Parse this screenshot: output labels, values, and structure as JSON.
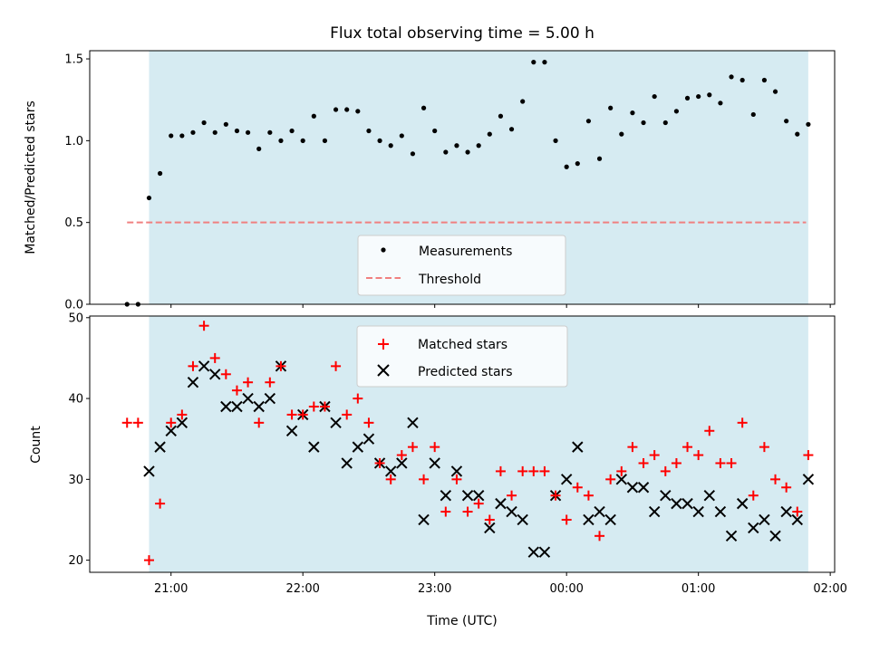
{
  "title": "Flux total observing time = 5.00 h",
  "colors": {
    "background": "#ffffff",
    "span": "#add8e6",
    "measurement": "#000000",
    "threshold": "#f08080",
    "matched": "#ff0000",
    "predicted": "#000000"
  },
  "chart_data": [
    {
      "type": "scatter",
      "ylabel": "Matched/Predicted stars",
      "xlabel": "",
      "ylim": [
        0,
        1.55
      ],
      "y_ticks": [
        {
          "label": "0.0",
          "value": 0.0
        },
        {
          "label": "0.5",
          "value": 0.5
        },
        {
          "label": "1.0",
          "value": 1.0
        },
        {
          "label": "1.5",
          "value": 1.5
        }
      ],
      "shaded_span_minutes": [
        1250,
        1550
      ],
      "threshold_line": {
        "value": 0.5,
        "x_start_minutes": 1240,
        "x_end_minutes": 1549
      },
      "legend": {
        "position": "lower center",
        "entries": [
          "Measurements",
          "Threshold"
        ]
      },
      "series": [
        {
          "name": "Measurements",
          "marker": "dot",
          "x_minutes": [
            1240,
            1245,
            1250,
            1255,
            1260,
            1265,
            1270,
            1275,
            1280,
            1285,
            1290,
            1295,
            1300,
            1305,
            1310,
            1315,
            1320,
            1325,
            1330,
            1335,
            1340,
            1345,
            1350,
            1355,
            1360,
            1365,
            1370,
            1375,
            1380,
            1385,
            1390,
            1395,
            1400,
            1405,
            1410,
            1415,
            1420,
            1425,
            1430,
            1435,
            1440,
            1445,
            1450,
            1455,
            1460,
            1465,
            1470,
            1475,
            1480,
            1485,
            1490,
            1495,
            1500,
            1505,
            1510,
            1515,
            1520,
            1525,
            1530,
            1535,
            1540,
            1545,
            1550
          ],
          "values": [
            0.0,
            0.0,
            0.65,
            0.8,
            1.03,
            1.03,
            1.05,
            1.11,
            1.05,
            1.1,
            1.06,
            1.05,
            0.95,
            1.05,
            1.0,
            1.06,
            1.0,
            1.15,
            1.0,
            1.19,
            1.19,
            1.18,
            1.06,
            1.0,
            0.97,
            1.03,
            0.92,
            1.2,
            1.06,
            0.93,
            0.97,
            0.93,
            0.97,
            1.04,
            1.15,
            1.07,
            1.24,
            1.48,
            1.48,
            1.0,
            0.84,
            0.86,
            1.12,
            0.89,
            1.2,
            1.04,
            1.17,
            1.11,
            1.27,
            1.11,
            1.18,
            1.26,
            1.27,
            1.28,
            1.23,
            1.39,
            1.37,
            1.16,
            1.37,
            1.3,
            1.12,
            1.04,
            1.1
          ]
        }
      ]
    },
    {
      "type": "scatter",
      "ylabel": "Count",
      "xlabel": "Time (UTC)",
      "ylim": [
        18.5,
        50.2
      ],
      "y_ticks": [
        {
          "label": "20",
          "value": 20
        },
        {
          "label": "30",
          "value": 30
        },
        {
          "label": "40",
          "value": 40
        },
        {
          "label": "50",
          "value": 50
        }
      ],
      "x_ticks": [
        {
          "label": "21:00",
          "minutes": 1260
        },
        {
          "label": "22:00",
          "minutes": 1320
        },
        {
          "label": "23:00",
          "minutes": 1380
        },
        {
          "label": "00:00",
          "minutes": 1440
        },
        {
          "label": "01:00",
          "minutes": 1500
        },
        {
          "label": "02:00",
          "minutes": 1560
        }
      ],
      "xlim_minutes": [
        1223,
        1562
      ],
      "shaded_span_minutes": [
        1250,
        1550
      ],
      "legend": {
        "position": "upper center",
        "entries": [
          "Matched stars",
          "Predicted stars"
        ]
      },
      "x_minutes": [
        1240,
        1245,
        1250,
        1255,
        1260,
        1265,
        1270,
        1275,
        1280,
        1285,
        1290,
        1295,
        1300,
        1305,
        1310,
        1315,
        1320,
        1325,
        1330,
        1335,
        1340,
        1345,
        1350,
        1355,
        1360,
        1365,
        1370,
        1375,
        1380,
        1385,
        1390,
        1395,
        1400,
        1405,
        1410,
        1415,
        1420,
        1425,
        1430,
        1435,
        1440,
        1445,
        1450,
        1455,
        1460,
        1465,
        1470,
        1475,
        1480,
        1485,
        1490,
        1495,
        1500,
        1505,
        1510,
        1515,
        1520,
        1525,
        1530,
        1535,
        1540,
        1545,
        1550
      ],
      "series": [
        {
          "name": "Matched stars",
          "marker": "plus",
          "values": [
            37,
            37,
            20,
            27,
            37,
            38,
            44,
            49,
            45,
            43,
            41,
            42,
            37,
            42,
            44,
            38,
            38,
            39,
            39,
            44,
            38,
            40,
            37,
            32,
            30,
            33,
            34,
            30,
            34,
            26,
            30,
            26,
            27,
            25,
            31,
            28,
            31,
            31,
            31,
            28,
            25,
            29,
            28,
            23,
            30,
            31,
            34,
            32,
            33,
            31,
            32,
            34,
            33,
            36,
            32,
            32,
            37,
            28,
            34,
            30,
            29,
            26,
            33
          ]
        },
        {
          "name": "Predicted stars",
          "marker": "x",
          "values": [
            null,
            null,
            31,
            34,
            36,
            37,
            42,
            44,
            43,
            39,
            39,
            40,
            39,
            40,
            44,
            36,
            38,
            34,
            39,
            37,
            32,
            34,
            35,
            32,
            31,
            32,
            37,
            25,
            32,
            28,
            31,
            28,
            28,
            24,
            27,
            26,
            25,
            21,
            21,
            28,
            30,
            34,
            25,
            26,
            25,
            30,
            29,
            29,
            26,
            28,
            27,
            27,
            26,
            28,
            26,
            23,
            27,
            24,
            25,
            23,
            26,
            25,
            30
          ]
        }
      ]
    }
  ]
}
